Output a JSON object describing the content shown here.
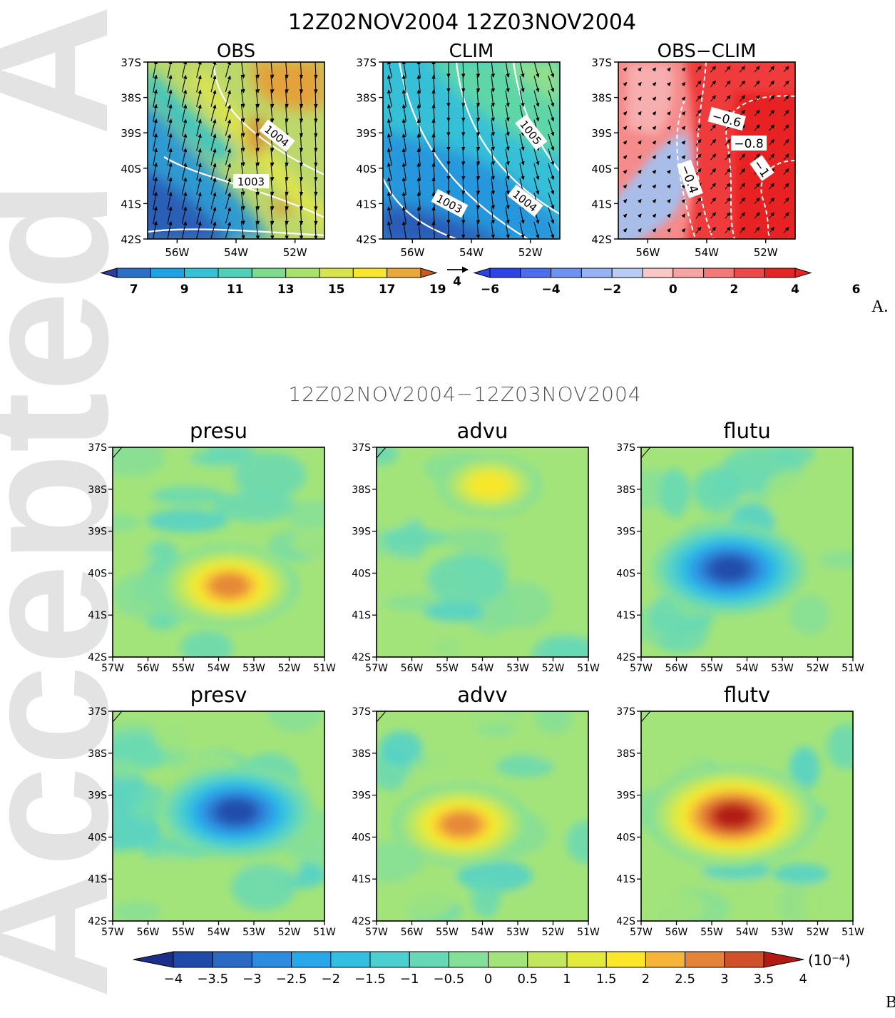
{
  "figure_a": {
    "title": "12Z02NOV2004  12Z03NOV2004",
    "panel_label": "A.",
    "colorbar_left_labels": [
      "7",
      "9",
      "11",
      "13",
      "15",
      "17",
      "19"
    ],
    "colorbar_right_labels": [
      "−6",
      "−4",
      "−2",
      "0",
      "2",
      "4",
      "6"
    ],
    "vector_reference": "4"
  },
  "figure_b": {
    "title": "12Z02NOV2004−12Z03NOV2004",
    "panel_label": "B.",
    "colorbar_labels": [
      "−4",
      "−3.5",
      "−3",
      "−2.5",
      "−2",
      "−1.5",
      "−1",
      "−0.5",
      "0",
      "0.5",
      "1",
      "1.5",
      "2",
      "2.5",
      "3",
      "3.5",
      "4"
    ],
    "colorbar_units": "(10⁻⁴)"
  },
  "watermark": "Accepted Article",
  "colors": {
    "seq_scale": [
      "#2b3fa0",
      "#2a6fc8",
      "#1aa4e6",
      "#35c2d6",
      "#4fd1b8",
      "#7ddb8e",
      "#a8e26b",
      "#d6e64a",
      "#f7e62a",
      "#e8a83a",
      "#c85a1e"
    ],
    "div_scale": [
      "#2b44e8",
      "#4a6ef0",
      "#6e92f2",
      "#95b2f4",
      "#b9ccf5",
      "#fbc6c6",
      "#f7a3a3",
      "#f47878",
      "#ef4848",
      "#e52424"
    ],
    "anom_scale": [
      "#1b2f8a",
      "#1f4aa8",
      "#2a69c4",
      "#2d8be0",
      "#28a8ea",
      "#33c0e0",
      "#4dcfcf",
      "#66d8b6",
      "#84df98",
      "#a3e47a",
      "#c2e75e",
      "#e2ea3e",
      "#fbe62a",
      "#f5b43a",
      "#e4843a",
      "#d0502a",
      "#b01a12"
    ]
  },
  "chart_data": [
    {
      "type": "heatmap",
      "panel": "a-obs",
      "title": "OBS",
      "xticks": [
        "56W",
        "54W",
        "52W"
      ],
      "yticks": [
        "37S",
        "38S",
        "39S",
        "40S",
        "41S",
        "42S"
      ],
      "xlim": [
        -57,
        -51
      ],
      "ylim": [
        -42,
        -37
      ],
      "contour_labels": [
        "1004",
        "1003"
      ],
      "vectors": true
    },
    {
      "type": "heatmap",
      "panel": "a-clim",
      "title": "CLIM",
      "xticks": [
        "56W",
        "54W",
        "52W"
      ],
      "yticks": [
        "37S",
        "38S",
        "39S",
        "40S",
        "41S",
        "42S"
      ],
      "xlim": [
        -57,
        -51
      ],
      "ylim": [
        -42,
        -37
      ],
      "contour_labels": [
        "1005",
        "1004",
        "1003"
      ],
      "vectors": true
    },
    {
      "type": "heatmap",
      "panel": "a-diff",
      "title": "OBS−CLIM",
      "xticks": [
        "56W",
        "54W",
        "52W"
      ],
      "yticks": [
        "37S",
        "38S",
        "39S",
        "40S",
        "41S",
        "42S"
      ],
      "xlim": [
        -57,
        -51
      ],
      "ylim": [
        -42,
        -37
      ],
      "contour_labels": [
        "−0.6",
        "−0.8",
        "−0.4",
        "−1"
      ],
      "vectors": true
    },
    {
      "type": "heatmap",
      "panel": "b-presu",
      "title": "presu",
      "xticks": [
        "57W",
        "56W",
        "55W",
        "54W",
        "53W",
        "52W",
        "51W"
      ],
      "yticks": [
        "37S",
        "38S",
        "39S",
        "40S",
        "41S",
        "42S"
      ],
      "xlim": [
        -57,
        -51
      ],
      "ylim": [
        -42,
        -37
      ],
      "peak_value": 3.0,
      "peak_location": [
        -53.7,
        -40.3
      ]
    },
    {
      "type": "heatmap",
      "panel": "b-advu",
      "title": "advu",
      "xticks": [
        "57W",
        "56W",
        "55W",
        "54W",
        "53W",
        "52W",
        "51W"
      ],
      "yticks": [
        "37S",
        "38S",
        "39S",
        "40S",
        "41S",
        "42S"
      ],
      "xlim": [
        -57,
        -51
      ],
      "ylim": [
        -42,
        -37
      ],
      "peak_value": 2.0,
      "peak_location": [
        -53.8,
        -37.9
      ]
    },
    {
      "type": "heatmap",
      "panel": "b-flutu",
      "title": "flutu",
      "xticks": [
        "57W",
        "56W",
        "55W",
        "54W",
        "53W",
        "52W",
        "51W"
      ],
      "yticks": [
        "37S",
        "38S",
        "39S",
        "40S",
        "41S",
        "42S"
      ],
      "xlim": [
        -57,
        -51
      ],
      "ylim": [
        -42,
        -37
      ],
      "peak_value": -3.5,
      "peak_location": [
        -54.5,
        -39.9
      ]
    },
    {
      "type": "heatmap",
      "panel": "b-presv",
      "title": "presv",
      "xticks": [
        "57W",
        "56W",
        "55W",
        "54W",
        "53W",
        "52W",
        "51W"
      ],
      "yticks": [
        "37S",
        "38S",
        "39S",
        "40S",
        "41S",
        "42S"
      ],
      "xlim": [
        -57,
        -51
      ],
      "ylim": [
        -42,
        -37
      ],
      "peak_value": -3.5,
      "peak_location": [
        -53.5,
        -39.4
      ]
    },
    {
      "type": "heatmap",
      "panel": "b-advv",
      "title": "advv",
      "xticks": [
        "57W",
        "56W",
        "55W",
        "54W",
        "53W",
        "52W",
        "51W"
      ],
      "yticks": [
        "37S",
        "38S",
        "39S",
        "40S",
        "41S",
        "42S"
      ],
      "xlim": [
        -57,
        -51
      ],
      "ylim": [
        -42,
        -37
      ],
      "peak_value": 3.0,
      "peak_location": [
        -54.6,
        -39.7
      ]
    },
    {
      "type": "heatmap",
      "panel": "b-flutv",
      "title": "flutv",
      "xticks": [
        "57W",
        "56W",
        "55W",
        "54W",
        "53W",
        "52W",
        "51W"
      ],
      "yticks": [
        "37S",
        "38S",
        "39S",
        "40S",
        "41S",
        "42S"
      ],
      "xlim": [
        -57,
        -51
      ],
      "ylim": [
        -42,
        -37
      ],
      "peak_value": 4.0,
      "peak_location": [
        -54.4,
        -39.5
      ]
    }
  ]
}
